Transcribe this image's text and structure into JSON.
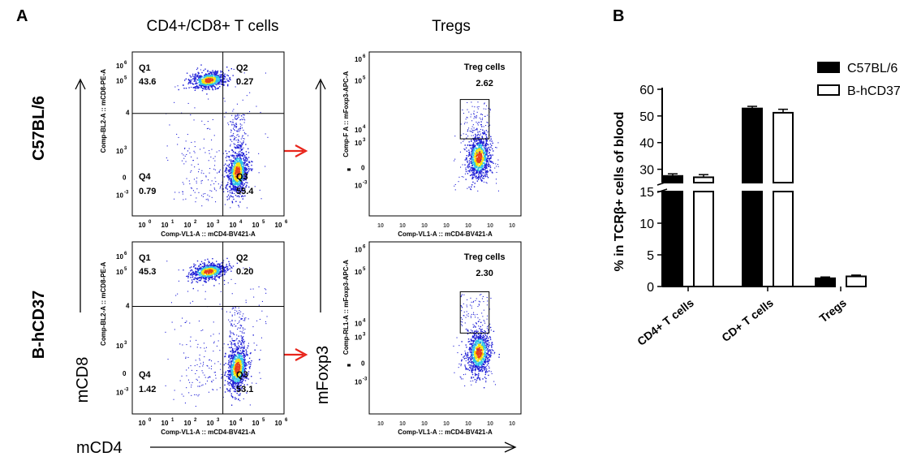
{
  "panel_a": {
    "label": "A",
    "col_titles": [
      "CD4+/CD8+ T cells",
      "Tregs"
    ],
    "row_labels": [
      "C57BL/6",
      "B-hCD37"
    ],
    "axis_mcd8": "mCD8",
    "axis_mfoxp3": "mFoxp3",
    "axis_mcd4": "mCD4",
    "plots": [
      {
        "ylabel": "Comp-BL2-A :: mCD8-PE-A",
        "xlabel": "Comp-VL1-A :: mCD4-BV421-A",
        "quadrants": [
          {
            "name": "Q1",
            "value": "43.6"
          },
          {
            "name": "Q2",
            "value": "0.27"
          },
          {
            "name": "Q3",
            "value": "55.4"
          },
          {
            "name": "Q4",
            "value": "0.79"
          }
        ]
      },
      {
        "ylabel": "Comp-BL2-A :: mCD8-PE-A",
        "xlabel": "Comp-VL1-A :: mCD4-BV421-A",
        "quadrants": [
          {
            "name": "Q1",
            "value": "45.3"
          },
          {
            "name": "Q2",
            "value": "0.20"
          },
          {
            "name": "Q3",
            "value": "53.1"
          },
          {
            "name": "Q4",
            "value": "1.42"
          }
        ]
      }
    ],
    "treg_plots": [
      {
        "ylabel": "Comp-F    A :: mFoxp3-APC-A",
        "xlabel": "Comp-VL1-A :: mCD4-BV421-A",
        "gate_label": "Treg cells",
        "gate_value": "2.62"
      },
      {
        "ylabel": "Comp-RL1-A :: mFoxp3-APC-A",
        "xlabel": "Comp-VL1-A :: mCD4-BV421-A",
        "gate_label": "Treg cells",
        "gate_value": "2.30"
      }
    ],
    "colors": {
      "density_low": "#1f1fd6",
      "density_mid": "#2ec4e8",
      "density_high": "#f5e50a",
      "density_peak": "#e8401c",
      "arrow": "#e8251b"
    }
  },
  "chart_data": {
    "type": "bar",
    "panel_label": "B",
    "categories": [
      "CD4+ T cells",
      "CD+ T cells",
      "Tregs"
    ],
    "series": [
      {
        "name": "C57BL/6",
        "values": [
          27.5,
          52.8,
          1.3
        ],
        "errors": [
          0.8,
          0.8,
          0.2
        ],
        "fill": "#000000"
      },
      {
        "name": "B-hCD37",
        "values": [
          27.0,
          51.2,
          1.6
        ],
        "errors": [
          1.0,
          1.3,
          0.2
        ],
        "fill": "#ffffff"
      }
    ],
    "ylabel": "% in TCRβ+ cells of blood",
    "yaxis_break": {
      "lower": [
        0,
        15
      ],
      "upper": [
        25,
        60
      ]
    },
    "yticks_lower": [
      0,
      5,
      10,
      15
    ],
    "yticks_upper": [
      30,
      40,
      50,
      60
    ],
    "legend": "top-right"
  }
}
